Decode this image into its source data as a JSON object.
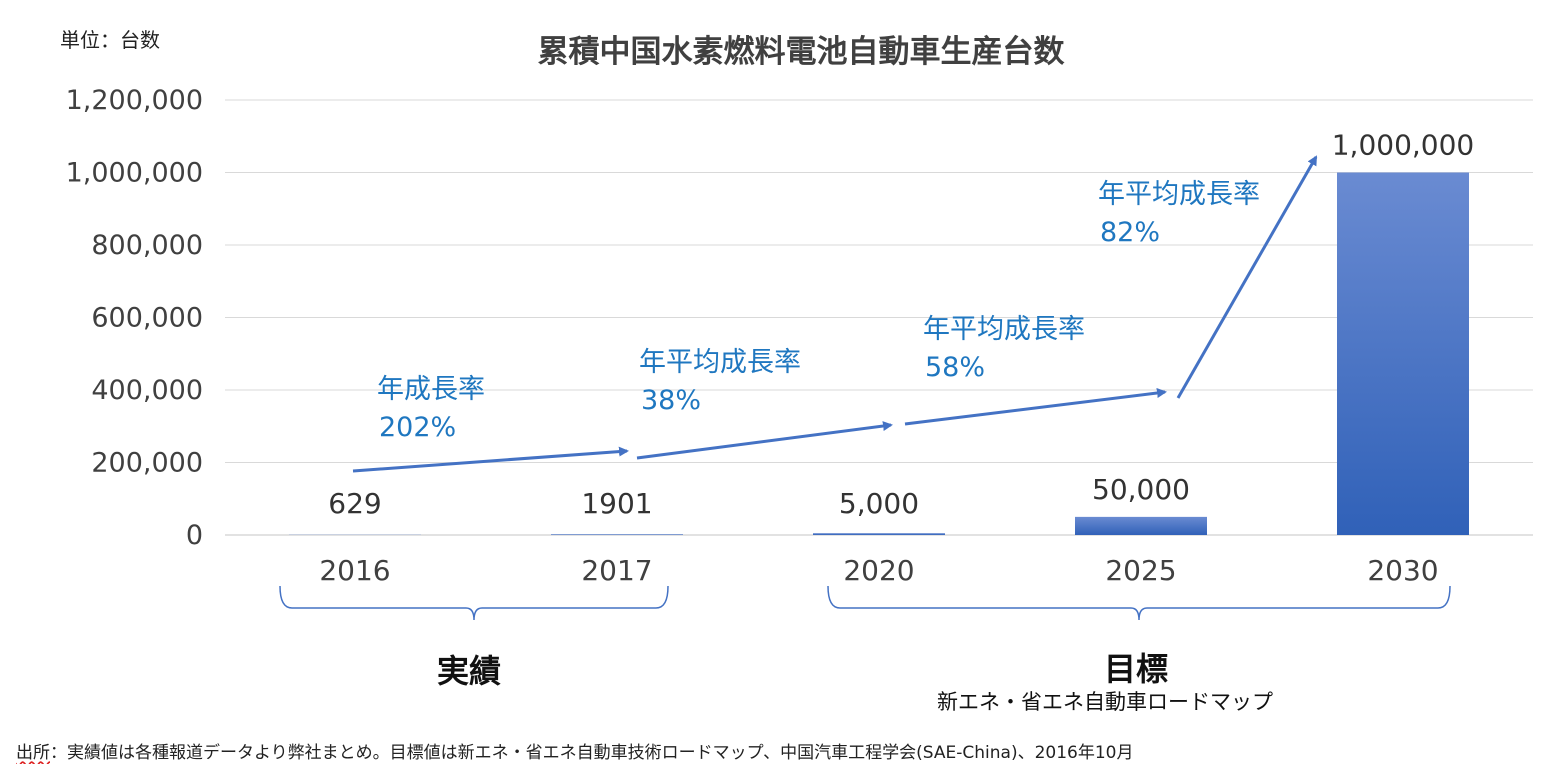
{
  "unit_label": "単位：台数",
  "source_prefix": "出所",
  "source_text": "：実績値は各種報道データより弊社まとめ。目標値は新エネ・省エネ自動車技術ロードマップ、中国汽車工程学会(SAE-China)、2016年10月",
  "groups": {
    "actual": "実績",
    "target": "目標",
    "target_sub": "新エネ・省エネ自動車ロードマップ"
  },
  "colors": {
    "bar_top": "#6a8bd2",
    "bar_bottom": "#3061b8",
    "arrow": "#4472c4",
    "annotation": "#1f77c0",
    "grid": "#d9d9d9",
    "tick": "#404040"
  },
  "chart_data": {
    "type": "bar",
    "title": "累積中国水素燃料電池自動車生産台数",
    "ylabel": "",
    "xlabel": "",
    "ylim": [
      0,
      1200000
    ],
    "yticks": [
      "0",
      "200,000",
      "400,000",
      "600,000",
      "800,000",
      "1,000,000",
      "1,200,000"
    ],
    "categories": [
      "2016",
      "2017",
      "2020",
      "2025",
      "2030"
    ],
    "values": [
      629,
      1901,
      5000,
      50000,
      1000000
    ],
    "value_labels": [
      "629",
      "1901",
      "5,000",
      "50,000",
      "1,000,000"
    ],
    "grid": true,
    "annotations": [
      {
        "line1": "年成長率",
        "line2": "202%"
      },
      {
        "line1": "年平均成長率",
        "line2": "38%"
      },
      {
        "line1": "年平均成長率",
        "line2": "58%"
      },
      {
        "line1": "年平均成長率",
        "line2": "82%"
      }
    ]
  }
}
